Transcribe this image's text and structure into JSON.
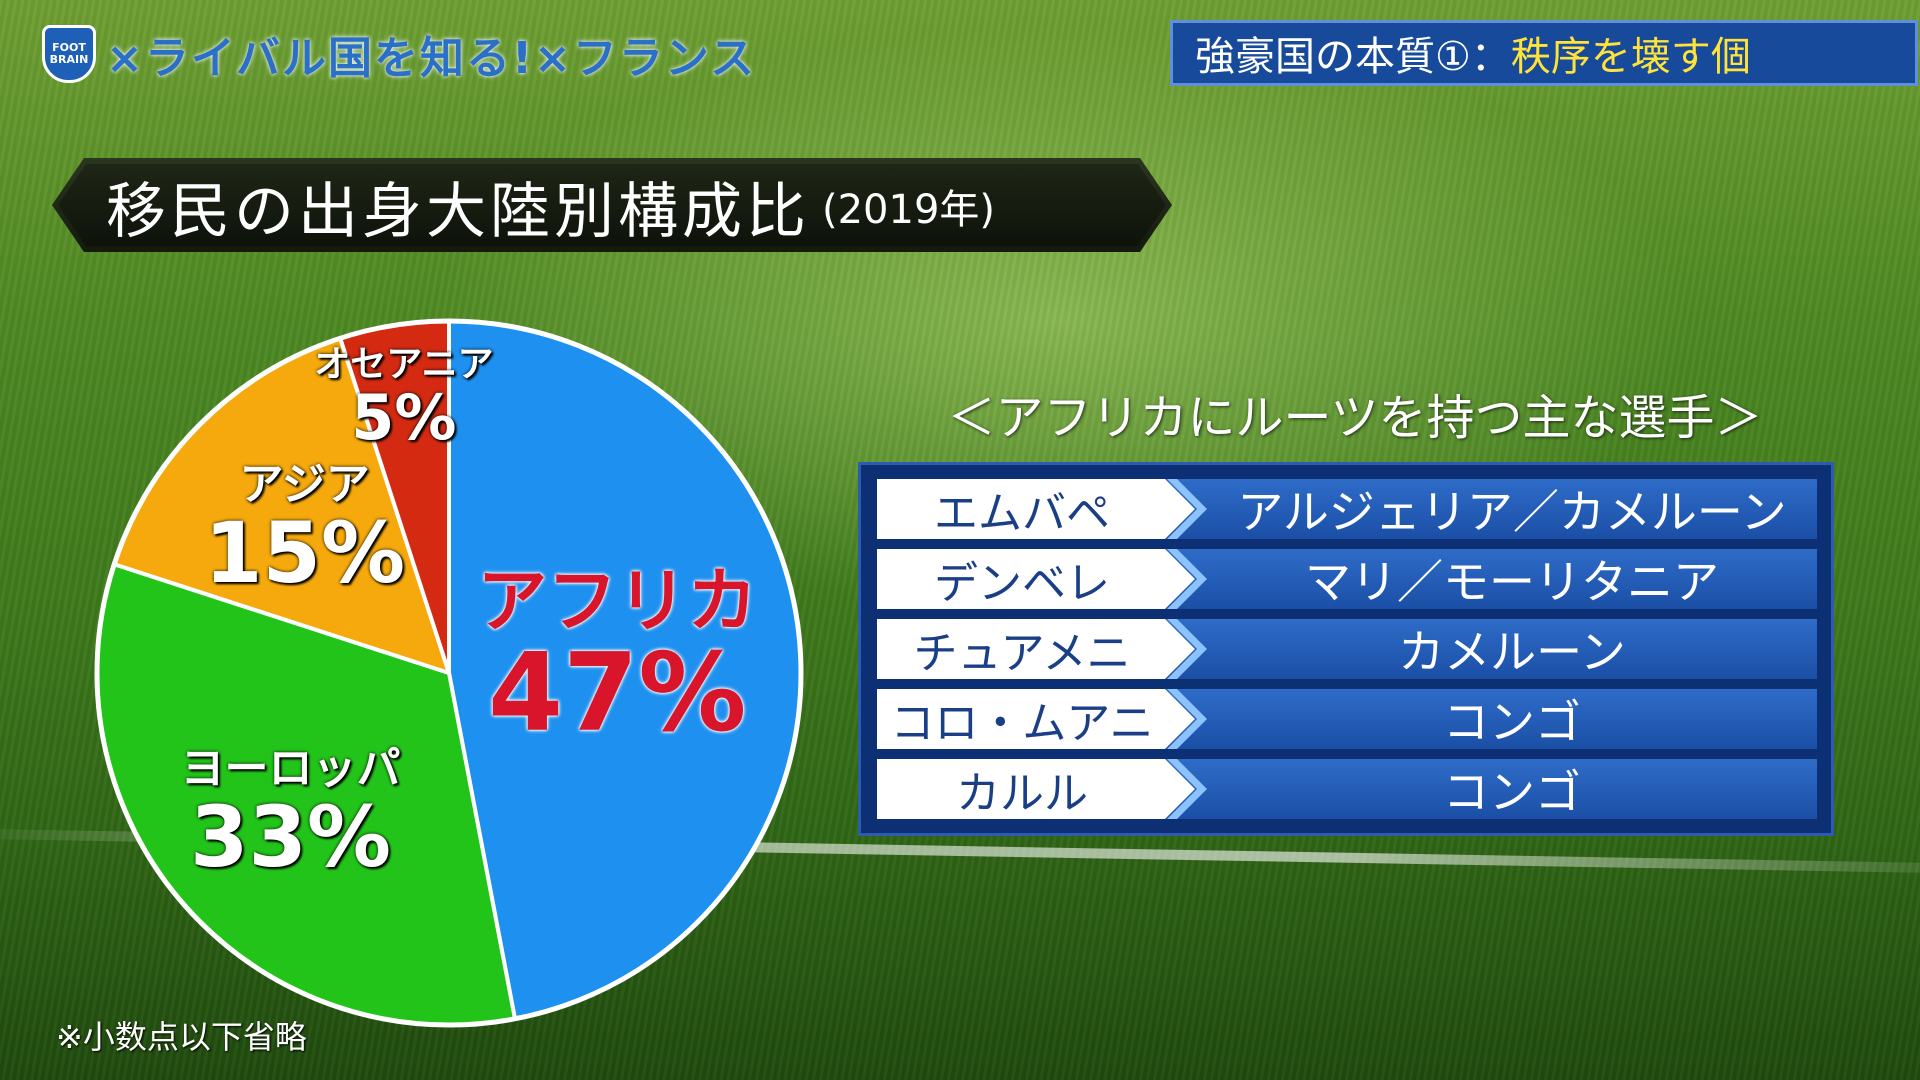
{
  "header": {
    "logo_text": "FOOT BRAIN",
    "show_title": "×ライバル国を知る!×フランス",
    "topic_main": "強豪国の本質①：",
    "topic_accent": "秩序を壊す個"
  },
  "chart_title": {
    "main": "移民の出身大陸別構成比",
    "sub": "(2019年)"
  },
  "footnote": "※小数点以下省略",
  "chart_data": {
    "type": "pie",
    "title": "移民の出身大陸別構成比 (2019年)",
    "slices": [
      {
        "label": "アフリカ",
        "value": 47,
        "display": "47%",
        "color": "#1e90f0"
      },
      {
        "label": "ヨーロッパ",
        "value": 33,
        "display": "33%",
        "color": "#22c41a"
      },
      {
        "label": "アジア",
        "value": 15,
        "display": "15%",
        "color": "#f5a90c"
      },
      {
        "label": "オセアニア",
        "value": 5,
        "display": "5%",
        "color": "#d42a12"
      }
    ]
  },
  "players_table": {
    "title": "＜アフリカにルーツを持つ主な選手＞",
    "rows": [
      {
        "name": "エムバペ",
        "origin": "アルジェリア／カメルーン"
      },
      {
        "name": "デンベレ",
        "origin": "マリ／モーリタニア"
      },
      {
        "name": "チュアメニ",
        "origin": "カメルーン"
      },
      {
        "name": "コロ・ムアニ",
        "origin": "コンゴ"
      },
      {
        "name": "カルル",
        "origin": "コンゴ"
      }
    ]
  }
}
